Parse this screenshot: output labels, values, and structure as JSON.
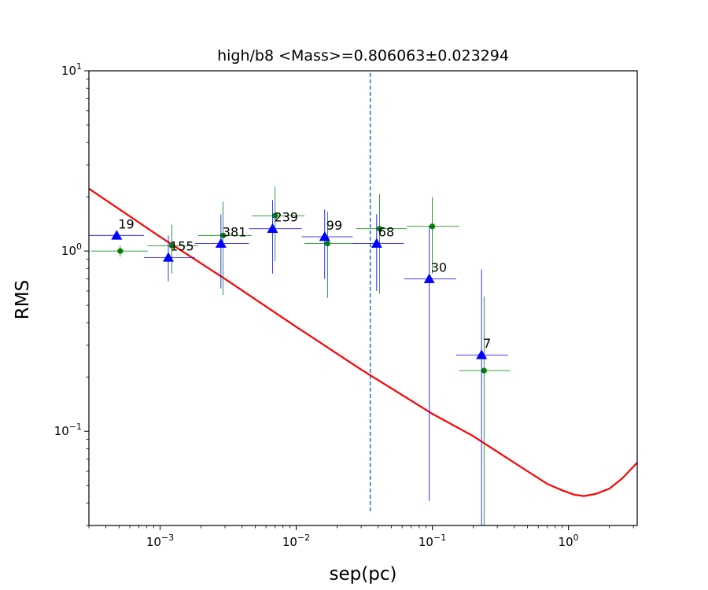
{
  "chart_data": {
    "type": "scatter",
    "title": "high/b8 <Mass>=0.806063±0.023294",
    "xlabel": "sep(pc)",
    "ylabel": "RMS",
    "xscale": "log",
    "yscale": "log",
    "xlim": [
      0.0003,
      3.2
    ],
    "ylim": [
      0.03,
      10
    ],
    "xticks": [
      {
        "value": 0.001,
        "base": "10",
        "exp": "−3"
      },
      {
        "value": 0.01,
        "base": "10",
        "exp": "−2"
      },
      {
        "value": 0.1,
        "base": "10",
        "exp": "−1"
      },
      {
        "value": 1,
        "base": "10",
        "exp": "0"
      }
    ],
    "yticks": [
      {
        "value": 0.1,
        "base": "10",
        "exp": "−1"
      },
      {
        "value": 1,
        "base": "10",
        "exp": "0"
      },
      {
        "value": 10,
        "base": "10",
        "exp": "1"
      }
    ],
    "grid": false,
    "vline": {
      "x": 0.035,
      "y_range": [
        0.036,
        10
      ],
      "color": "#1f77b4",
      "style": "dashed"
    },
    "curve": {
      "color": "#ff0000",
      "x": [
        0.0003,
        0.001,
        0.003,
        0.01,
        0.03,
        0.1,
        0.2,
        0.3,
        0.5,
        0.7,
        0.9,
        1.1,
        1.3,
        1.6,
        2.0,
        2.5,
        3.2
      ],
      "y": [
        2.22,
        1.2,
        0.7,
        0.38,
        0.22,
        0.125,
        0.094,
        0.077,
        0.06,
        0.051,
        0.047,
        0.0445,
        0.0437,
        0.045,
        0.048,
        0.055,
        0.067
      ]
    },
    "series": [
      {
        "marker": "triangle",
        "color": "#0000ff",
        "points": [
          {
            "x": 0.00048,
            "y": 1.22,
            "xerr": [
              0.0003,
              0.00076
            ],
            "yerr": null,
            "label": "19"
          },
          {
            "x": 0.00115,
            "y": 0.92,
            "xerr": [
              0.00076,
              0.0018
            ],
            "yerr": [
              0.68,
              1.22
            ],
            "label": "155"
          },
          {
            "x": 0.0028,
            "y": 1.1,
            "xerr": [
              0.0018,
              0.0045
            ],
            "yerr": [
              0.62,
              1.6
            ],
            "label": "381"
          },
          {
            "x": 0.0067,
            "y": 1.33,
            "xerr": [
              0.0045,
              0.011
            ],
            "yerr": [
              0.75,
              1.92
            ],
            "label": "239"
          },
          {
            "x": 0.0162,
            "y": 1.2,
            "xerr": [
              0.011,
              0.026
            ],
            "yerr": [
              0.7,
              1.7
            ],
            "label": "99"
          },
          {
            "x": 0.039,
            "y": 1.1,
            "xerr": [
              0.026,
              0.062
            ],
            "yerr": [
              0.6,
              1.6
            ],
            "label": "68"
          },
          {
            "x": 0.095,
            "y": 0.7,
            "xerr": [
              0.062,
              0.15
            ],
            "yerr": [
              0.041,
              1.38
            ],
            "label": "30"
          },
          {
            "x": 0.23,
            "y": 0.265,
            "xerr": [
              0.15,
              0.36
            ],
            "yerr": [
              0.03,
              0.79
            ],
            "label": "7"
          }
        ]
      },
      {
        "marker": "circle",
        "color": "#008000",
        "points": [
          {
            "x": 0.00051,
            "y": 1.0,
            "xerr": [
              0.00031,
              0.00081
            ],
            "yerr": [
              0.93,
              1.07
            ]
          },
          {
            "x": 0.00122,
            "y": 1.07,
            "xerr": [
              0.00081,
              0.0019
            ],
            "yerr": [
              0.75,
              1.4
            ]
          },
          {
            "x": 0.0029,
            "y": 1.22,
            "xerr": [
              0.0019,
              0.0047
            ],
            "yerr": [
              0.57,
              1.88
            ]
          },
          {
            "x": 0.007,
            "y": 1.57,
            "xerr": [
              0.0047,
              0.0115
            ],
            "yerr": [
              0.88,
              2.27
            ]
          },
          {
            "x": 0.017,
            "y": 1.1,
            "xerr": [
              0.0115,
              0.0275
            ],
            "yerr": [
              0.55,
              1.65
            ]
          },
          {
            "x": 0.041,
            "y": 1.33,
            "xerr": [
              0.0275,
              0.065
            ],
            "yerr": [
              0.58,
              2.07
            ]
          },
          {
            "x": 0.1,
            "y": 1.37,
            "xerr": [
              0.065,
              0.158
            ],
            "yerr": [
              0.75,
              1.99
            ]
          },
          {
            "x": 0.24,
            "y": 0.217,
            "xerr": [
              0.158,
              0.375
            ],
            "yerr": [
              0.03,
              0.56
            ]
          }
        ]
      }
    ]
  }
}
